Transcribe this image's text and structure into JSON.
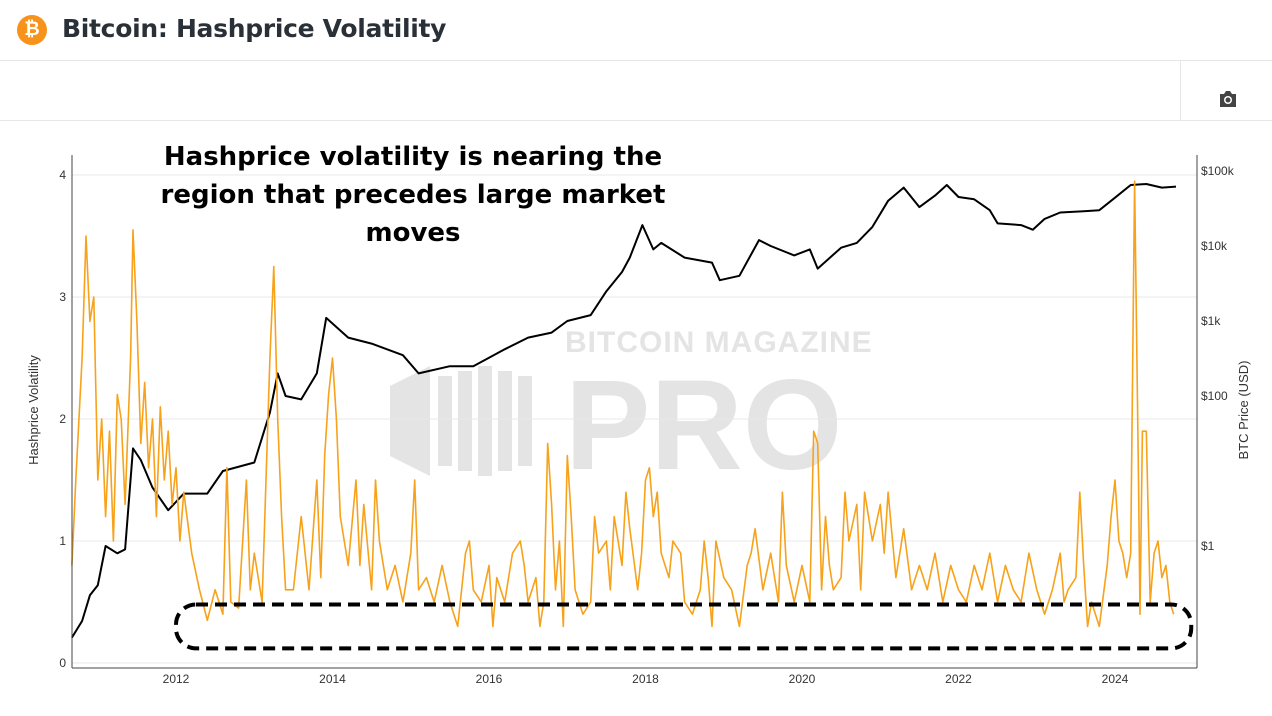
{
  "header": {
    "title": "Bitcoin: Hashprice Volatility",
    "logo_icon": "bitcoin-icon"
  },
  "toolbar": {
    "camera_icon": "camera-icon"
  },
  "watermark": {
    "line1": "BITCOIN MAGAZINE",
    "line2": "PRO"
  },
  "annotation": {
    "line1": "Hashprice volatility is nearing the",
    "line2": "region that precedes large market moves"
  },
  "chart_data": {
    "type": "line",
    "title": "",
    "xlabel": "",
    "ylabel": "Hashprice Volatility",
    "y2label": "BTC Price (USD)",
    "xlim": [
      2010.67,
      2025.05
    ],
    "ylim": [
      0,
      4.15
    ],
    "y2lim_log": [
      0.03,
      200000
    ],
    "y2scale": "log",
    "grid": true,
    "xticks": [
      "2012",
      "2014",
      "2016",
      "2018",
      "2020",
      "2022",
      "2024"
    ],
    "yticks": [
      "0",
      "1",
      "2",
      "3",
      "4"
    ],
    "y2ticks": [
      {
        "value": 1,
        "label": "$1"
      },
      {
        "value": 100,
        "label": "$100"
      },
      {
        "value": 1000,
        "label": "$1k"
      },
      {
        "value": 10000,
        "label": "$10k"
      },
      {
        "value": 100000,
        "label": "$100k"
      }
    ],
    "colors": {
      "volatility": "#f7a21a",
      "price": "#000000",
      "highlight": "#000000"
    },
    "highlight_box": {
      "x": [
        2012.0,
        2025.0
      ],
      "y": [
        0.12,
        0.48
      ],
      "style": "dashed"
    },
    "series": [
      {
        "axis": "y2",
        "color": "#000000",
        "points": [
          [
            2010.67,
            0.06
          ],
          [
            2010.8,
            0.1
          ],
          [
            2010.9,
            0.22
          ],
          [
            2011.0,
            0.3
          ],
          [
            2011.1,
            1
          ],
          [
            2011.25,
            0.8
          ],
          [
            2011.35,
            0.9
          ],
          [
            2011.45,
            20
          ],
          [
            2011.55,
            14
          ],
          [
            2011.7,
            6
          ],
          [
            2011.9,
            3
          ],
          [
            2012.1,
            5
          ],
          [
            2012.4,
            5
          ],
          [
            2012.6,
            10
          ],
          [
            2013.0,
            13
          ],
          [
            2013.2,
            60
          ],
          [
            2013.3,
            200
          ],
          [
            2013.4,
            100
          ],
          [
            2013.6,
            90
          ],
          [
            2013.8,
            200
          ],
          [
            2013.92,
            1100
          ],
          [
            2014.2,
            600
          ],
          [
            2014.5,
            500
          ],
          [
            2014.9,
            350
          ],
          [
            2015.1,
            200
          ],
          [
            2015.5,
            250
          ],
          [
            2015.8,
            250
          ],
          [
            2016.2,
            420
          ],
          [
            2016.5,
            600
          ],
          [
            2016.8,
            700
          ],
          [
            2017.0,
            1000
          ],
          [
            2017.3,
            1200
          ],
          [
            2017.5,
            2500
          ],
          [
            2017.7,
            4500
          ],
          [
            2017.8,
            7000
          ],
          [
            2017.96,
            19000
          ],
          [
            2018.1,
            9000
          ],
          [
            2018.2,
            11000
          ],
          [
            2018.5,
            7000
          ],
          [
            2018.85,
            6000
          ],
          [
            2018.95,
            3500
          ],
          [
            2019.2,
            4000
          ],
          [
            2019.45,
            12000
          ],
          [
            2019.6,
            10000
          ],
          [
            2019.9,
            7500
          ],
          [
            2020.1,
            9000
          ],
          [
            2020.2,
            5000
          ],
          [
            2020.5,
            9500
          ],
          [
            2020.7,
            11000
          ],
          [
            2020.9,
            18000
          ],
          [
            2021.1,
            40000
          ],
          [
            2021.3,
            60000
          ],
          [
            2021.5,
            33000
          ],
          [
            2021.7,
            47000
          ],
          [
            2021.85,
            65000
          ],
          [
            2022.0,
            45000
          ],
          [
            2022.2,
            42000
          ],
          [
            2022.4,
            30000
          ],
          [
            2022.5,
            20000
          ],
          [
            2022.8,
            19000
          ],
          [
            2022.95,
            16500
          ],
          [
            2023.1,
            23000
          ],
          [
            2023.3,
            28000
          ],
          [
            2023.6,
            29000
          ],
          [
            2023.8,
            30000
          ],
          [
            2024.0,
            44000
          ],
          [
            2024.2,
            65000
          ],
          [
            2024.4,
            67000
          ],
          [
            2024.6,
            60000
          ],
          [
            2024.78,
            62000
          ]
        ]
      },
      {
        "axis": "y",
        "color": "#f7a21a",
        "points": [
          [
            2010.67,
            0.8
          ],
          [
            2010.72,
            1.5
          ],
          [
            2010.8,
            2.5
          ],
          [
            2010.85,
            3.5
          ],
          [
            2010.9,
            2.8
          ],
          [
            2010.95,
            3.0
          ],
          [
            2011.0,
            1.5
          ],
          [
            2011.05,
            2.0
          ],
          [
            2011.1,
            1.2
          ],
          [
            2011.15,
            1.9
          ],
          [
            2011.2,
            1.0
          ],
          [
            2011.25,
            2.2
          ],
          [
            2011.3,
            2.0
          ],
          [
            2011.35,
            1.3
          ],
          [
            2011.42,
            2.5
          ],
          [
            2011.45,
            3.55
          ],
          [
            2011.5,
            2.8
          ],
          [
            2011.55,
            1.8
          ],
          [
            2011.6,
            2.3
          ],
          [
            2011.65,
            1.6
          ],
          [
            2011.7,
            2.0
          ],
          [
            2011.75,
            1.2
          ],
          [
            2011.8,
            2.1
          ],
          [
            2011.85,
            1.5
          ],
          [
            2011.9,
            1.9
          ],
          [
            2011.95,
            1.3
          ],
          [
            2012.0,
            1.6
          ],
          [
            2012.05,
            1.0
          ],
          [
            2012.1,
            1.4
          ],
          [
            2012.2,
            0.9
          ],
          [
            2012.3,
            0.6
          ],
          [
            2012.4,
            0.35
          ],
          [
            2012.5,
            0.6
          ],
          [
            2012.6,
            0.4
          ],
          [
            2012.65,
            1.6
          ],
          [
            2012.7,
            0.5
          ],
          [
            2012.8,
            0.45
          ],
          [
            2012.9,
            1.5
          ],
          [
            2012.95,
            0.6
          ],
          [
            2013.0,
            0.9
          ],
          [
            2013.1,
            0.5
          ],
          [
            2013.2,
            2.5
          ],
          [
            2013.25,
            3.25
          ],
          [
            2013.3,
            2.0
          ],
          [
            2013.35,
            1.2
          ],
          [
            2013.4,
            0.6
          ],
          [
            2013.5,
            0.6
          ],
          [
            2013.6,
            1.2
          ],
          [
            2013.7,
            0.6
          ],
          [
            2013.8,
            1.5
          ],
          [
            2013.85,
            0.7
          ],
          [
            2013.9,
            1.7
          ],
          [
            2013.95,
            2.2
          ],
          [
            2014.0,
            2.5
          ],
          [
            2014.05,
            2.0
          ],
          [
            2014.1,
            1.2
          ],
          [
            2014.2,
            0.8
          ],
          [
            2014.3,
            1.5
          ],
          [
            2014.35,
            0.8
          ],
          [
            2014.4,
            1.3
          ],
          [
            2014.5,
            0.6
          ],
          [
            2014.55,
            1.5
          ],
          [
            2014.6,
            1.0
          ],
          [
            2014.7,
            0.6
          ],
          [
            2014.8,
            0.8
          ],
          [
            2014.9,
            0.5
          ],
          [
            2015.0,
            0.9
          ],
          [
            2015.05,
            1.5
          ],
          [
            2015.1,
            0.6
          ],
          [
            2015.2,
            0.7
          ],
          [
            2015.3,
            0.5
          ],
          [
            2015.4,
            0.8
          ],
          [
            2015.5,
            0.5
          ],
          [
            2015.6,
            0.3
          ],
          [
            2015.7,
            0.9
          ],
          [
            2015.75,
            1.0
          ],
          [
            2015.8,
            0.6
          ],
          [
            2015.9,
            0.5
          ],
          [
            2016.0,
            0.8
          ],
          [
            2016.05,
            0.3
          ],
          [
            2016.1,
            0.7
          ],
          [
            2016.2,
            0.5
          ],
          [
            2016.3,
            0.9
          ],
          [
            2016.4,
            1.0
          ],
          [
            2016.45,
            0.8
          ],
          [
            2016.5,
            0.5
          ],
          [
            2016.6,
            0.7
          ],
          [
            2016.65,
            0.3
          ],
          [
            2016.7,
            0.5
          ],
          [
            2016.75,
            1.8
          ],
          [
            2016.8,
            1.3
          ],
          [
            2016.85,
            0.6
          ],
          [
            2016.9,
            1.0
          ],
          [
            2016.95,
            0.3
          ],
          [
            2017.0,
            1.7
          ],
          [
            2017.05,
            1.2
          ],
          [
            2017.1,
            0.6
          ],
          [
            2017.2,
            0.4
          ],
          [
            2017.3,
            0.5
          ],
          [
            2017.35,
            1.2
          ],
          [
            2017.4,
            0.9
          ],
          [
            2017.5,
            1.0
          ],
          [
            2017.55,
            0.6
          ],
          [
            2017.6,
            1.2
          ],
          [
            2017.7,
            0.8
          ],
          [
            2017.75,
            1.4
          ],
          [
            2017.8,
            1.1
          ],
          [
            2017.9,
            0.6
          ],
          [
            2017.95,
            0.9
          ],
          [
            2018.0,
            1.5
          ],
          [
            2018.05,
            1.6
          ],
          [
            2018.1,
            1.2
          ],
          [
            2018.15,
            1.4
          ],
          [
            2018.2,
            0.9
          ],
          [
            2018.3,
            0.7
          ],
          [
            2018.35,
            1.0
          ],
          [
            2018.45,
            0.9
          ],
          [
            2018.5,
            0.5
          ],
          [
            2018.6,
            0.4
          ],
          [
            2018.7,
            0.6
          ],
          [
            2018.75,
            1.0
          ],
          [
            2018.8,
            0.7
          ],
          [
            2018.85,
            0.3
          ],
          [
            2018.9,
            1.0
          ],
          [
            2019.0,
            0.7
          ],
          [
            2019.1,
            0.6
          ],
          [
            2019.2,
            0.3
          ],
          [
            2019.3,
            0.8
          ],
          [
            2019.35,
            0.9
          ],
          [
            2019.4,
            1.1
          ],
          [
            2019.5,
            0.6
          ],
          [
            2019.6,
            0.9
          ],
          [
            2019.7,
            0.5
          ],
          [
            2019.75,
            1.4
          ],
          [
            2019.8,
            0.8
          ],
          [
            2019.9,
            0.5
          ],
          [
            2020.0,
            0.8
          ],
          [
            2020.1,
            0.5
          ],
          [
            2020.15,
            1.9
          ],
          [
            2020.2,
            1.8
          ],
          [
            2020.25,
            0.6
          ],
          [
            2020.3,
            1.2
          ],
          [
            2020.35,
            0.8
          ],
          [
            2020.4,
            0.6
          ],
          [
            2020.5,
            0.7
          ],
          [
            2020.55,
            1.4
          ],
          [
            2020.6,
            1.0
          ],
          [
            2020.7,
            1.3
          ],
          [
            2020.75,
            0.6
          ],
          [
            2020.8,
            1.4
          ],
          [
            2020.9,
            1.0
          ],
          [
            2021.0,
            1.3
          ],
          [
            2021.05,
            0.9
          ],
          [
            2021.1,
            1.4
          ],
          [
            2021.2,
            0.7
          ],
          [
            2021.3,
            1.1
          ],
          [
            2021.4,
            0.6
          ],
          [
            2021.5,
            0.8
          ],
          [
            2021.6,
            0.6
          ],
          [
            2021.7,
            0.9
          ],
          [
            2021.8,
            0.5
          ],
          [
            2021.9,
            0.8
          ],
          [
            2022.0,
            0.6
          ],
          [
            2022.1,
            0.5
          ],
          [
            2022.2,
            0.8
          ],
          [
            2022.3,
            0.6
          ],
          [
            2022.4,
            0.9
          ],
          [
            2022.5,
            0.5
          ],
          [
            2022.6,
            0.8
          ],
          [
            2022.7,
            0.6
          ],
          [
            2022.8,
            0.5
          ],
          [
            2022.9,
            0.9
          ],
          [
            2023.0,
            0.6
          ],
          [
            2023.1,
            0.4
          ],
          [
            2023.2,
            0.6
          ],
          [
            2023.3,
            0.9
          ],
          [
            2023.35,
            0.5
          ],
          [
            2023.4,
            0.6
          ],
          [
            2023.5,
            0.7
          ],
          [
            2023.55,
            1.4
          ],
          [
            2023.6,
            0.8
          ],
          [
            2023.65,
            0.3
          ],
          [
            2023.7,
            0.5
          ],
          [
            2023.8,
            0.3
          ],
          [
            2023.9,
            0.8
          ],
          [
            2023.95,
            1.2
          ],
          [
            2024.0,
            1.5
          ],
          [
            2024.05,
            1.0
          ],
          [
            2024.1,
            0.9
          ],
          [
            2024.15,
            0.7
          ],
          [
            2024.2,
            0.9
          ],
          [
            2024.25,
            3.95
          ],
          [
            2024.3,
            1.5
          ],
          [
            2024.32,
            0.4
          ],
          [
            2024.35,
            1.9
          ],
          [
            2024.4,
            1.9
          ],
          [
            2024.45,
            0.5
          ],
          [
            2024.5,
            0.9
          ],
          [
            2024.55,
            1.0
          ],
          [
            2024.6,
            0.7
          ],
          [
            2024.65,
            0.8
          ],
          [
            2024.7,
            0.5
          ],
          [
            2024.75,
            0.4
          ]
        ]
      }
    ]
  }
}
